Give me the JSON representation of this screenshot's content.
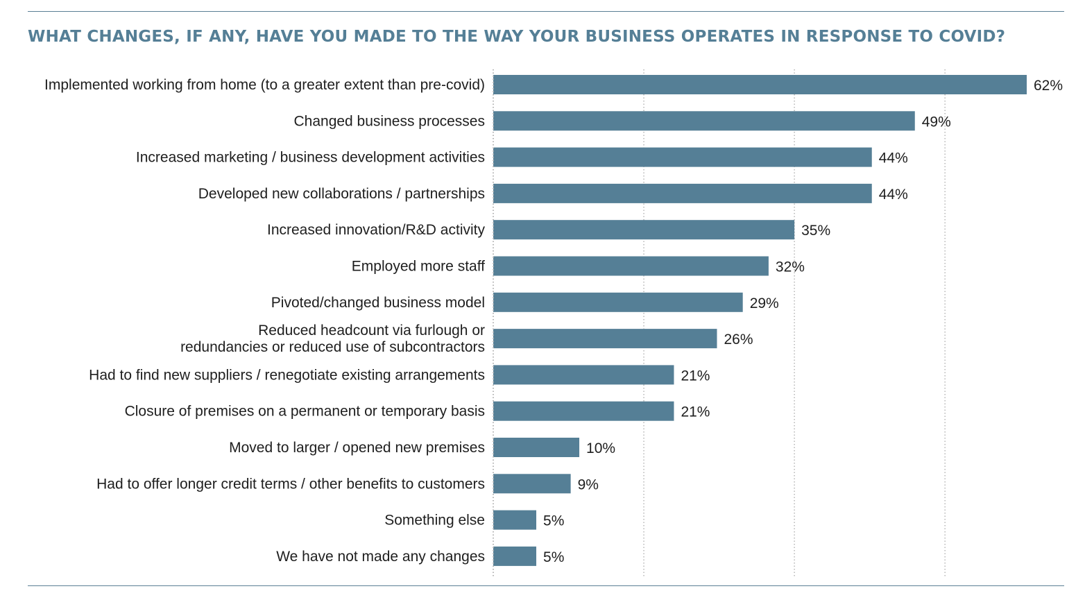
{
  "title": "WHAT CHANGES, IF ANY, HAVE YOU MADE TO THE WAY YOUR BUSINESS OPERATES IN RESPONSE TO COVID?",
  "colors": {
    "bar": "#557f96",
    "title": "#557f96",
    "text": "#1e1e1e",
    "grid": "#b5b5b5",
    "rule": "#5a7f94"
  },
  "chart_data": {
    "type": "bar",
    "orientation": "horizontal",
    "title": "WHAT CHANGES, IF ANY, HAVE YOU MADE TO THE WAY YOUR BUSINESS OPERATES IN RESPONSE TO COVID?",
    "categories": [
      "Implemented working from home (to a greater extent than pre-covid)",
      "Changed business processes",
      "Increased marketing / business development activities",
      "Developed new collaborations / partnerships",
      "Increased innovation/R&D activity",
      "Employed more staff",
      "Pivoted/changed business model",
      "Reduced headcount via furlough or\nredundancies or reduced use of subcontractors",
      "Had to find new suppliers / renegotiate existing arrangements",
      "Closure of premises on a permanent or temporary basis",
      "Moved to larger / opened new premises",
      "Had to offer longer credit terms / other benefits to customers",
      "Something else",
      "We have not made any changes"
    ],
    "values": [
      62,
      49,
      44,
      44,
      35,
      32,
      29,
      26,
      21,
      21,
      10,
      9,
      5,
      5
    ],
    "value_labels": [
      "62%",
      "49%",
      "44%",
      "44%",
      "35%",
      "32%",
      "29%",
      "26%",
      "21%",
      "21%",
      "10%",
      "9%",
      "5%",
      "5%"
    ],
    "unit": "%",
    "xlim": [
      0,
      66
    ],
    "grid": true,
    "grid_style": "dotted vertical",
    "legend": "none"
  }
}
